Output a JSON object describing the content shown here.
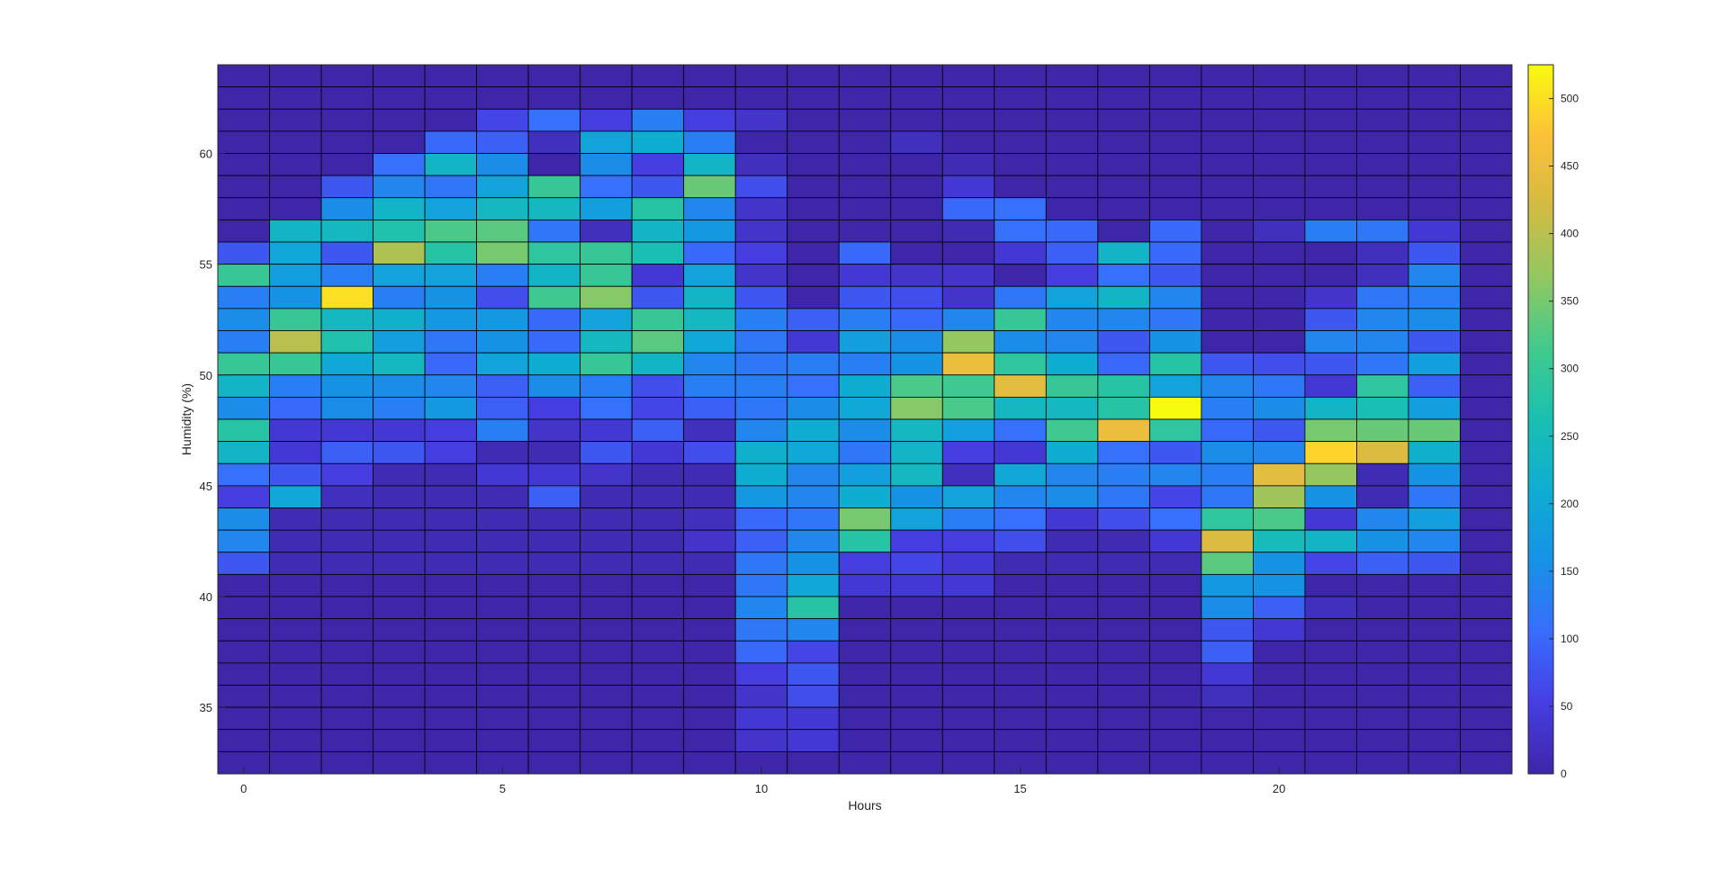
{
  "chart_data": {
    "type": "heatmap",
    "title": "",
    "xlabel": "Hours",
    "ylabel": "Humidity (%)",
    "x_bin_edges": [
      -0.5,
      0.5,
      1.5,
      2.5,
      3.5,
      4.5,
      5.5,
      6.5,
      7.5,
      8.5,
      9.5,
      10.5,
      11.5,
      12.5,
      13.5,
      14.5,
      15.5,
      16.5,
      17.5,
      18.5,
      19.5,
      20.5,
      21.5,
      22.5,
      23.5,
      24.5
    ],
    "y_bin_edges": [
      32,
      33,
      34,
      35,
      36,
      37,
      38,
      39,
      40,
      41,
      42,
      43,
      44,
      45,
      46,
      47,
      48,
      49,
      50,
      51,
      52,
      53,
      54,
      55,
      56,
      57,
      58,
      59,
      60,
      61,
      62,
      63,
      64
    ],
    "xlim": [
      -0.5,
      24.5
    ],
    "ylim": [
      32,
      64
    ],
    "xticks": [
      0,
      5,
      10,
      15,
      20
    ],
    "yticks": [
      35,
      40,
      45,
      50,
      55,
      60
    ],
    "colorbar": {
      "limits": [
        0,
        525
      ],
      "ticks": [
        0,
        50,
        100,
        150,
        200,
        250,
        300,
        350,
        400,
        450,
        500
      ]
    },
    "row_order": "top-to-bottom (64 down to 32)",
    "values": [
      [
        0,
        0,
        0,
        0,
        0,
        0,
        0,
        0,
        0,
        0,
        0,
        0,
        0,
        0,
        0,
        0,
        0,
        0,
        0,
        0,
        0,
        0,
        0,
        0,
        0
      ],
      [
        0,
        0,
        0,
        0,
        0,
        0,
        0,
        0,
        0,
        0,
        0,
        0,
        0,
        0,
        0,
        0,
        0,
        0,
        0,
        0,
        0,
        0,
        0,
        0,
        0
      ],
      [
        0,
        0,
        0,
        0,
        0,
        60,
        110,
        50,
        130,
        50,
        30,
        0,
        0,
        0,
        0,
        0,
        0,
        0,
        0,
        0,
        0,
        0,
        0,
        0,
        0
      ],
      [
        0,
        0,
        0,
        0,
        100,
        90,
        20,
        190,
        210,
        130,
        0,
        0,
        0,
        20,
        0,
        0,
        0,
        0,
        0,
        0,
        0,
        0,
        0,
        0,
        0
      ],
      [
        0,
        0,
        0,
        110,
        230,
        150,
        0,
        150,
        50,
        230,
        20,
        0,
        0,
        0,
        10,
        0,
        0,
        0,
        0,
        0,
        0,
        0,
        0,
        0,
        0
      ],
      [
        0,
        0,
        80,
        140,
        120,
        190,
        300,
        110,
        80,
        340,
        70,
        0,
        0,
        0,
        40,
        0,
        0,
        0,
        0,
        0,
        0,
        0,
        0,
        0,
        0
      ],
      [
        0,
        0,
        150,
        230,
        190,
        240,
        240,
        180,
        280,
        140,
        30,
        0,
        0,
        0,
        100,
        110,
        0,
        0,
        0,
        0,
        0,
        0,
        0,
        0,
        0
      ],
      [
        0,
        230,
        240,
        270,
        320,
        330,
        120,
        20,
        230,
        170,
        30,
        0,
        0,
        0,
        10,
        110,
        100,
        0,
        100,
        0,
        20,
        130,
        120,
        40,
        0
      ],
      [
        80,
        200,
        80,
        390,
        280,
        350,
        290,
        300,
        260,
        100,
        50,
        0,
        100,
        0,
        0,
        40,
        90,
        230,
        100,
        0,
        0,
        0,
        20,
        80,
        0
      ],
      [
        300,
        180,
        130,
        190,
        190,
        130,
        230,
        300,
        40,
        190,
        30,
        0,
        40,
        30,
        30,
        0,
        50,
        110,
        80,
        0,
        0,
        0,
        20,
        140,
        0
      ],
      [
        130,
        160,
        500,
        130,
        160,
        70,
        310,
        360,
        80,
        230,
        80,
        0,
        80,
        70,
        30,
        120,
        190,
        230,
        140,
        0,
        0,
        30,
        120,
        130,
        0
      ],
      [
        150,
        300,
        240,
        220,
        170,
        170,
        100,
        190,
        300,
        240,
        130,
        90,
        130,
        100,
        140,
        300,
        140,
        140,
        120,
        0,
        0,
        80,
        140,
        150,
        0
      ],
      [
        130,
        400,
        270,
        180,
        120,
        160,
        100,
        240,
        330,
        200,
        120,
        40,
        180,
        150,
        370,
        150,
        140,
        80,
        160,
        0,
        0,
        140,
        140,
        80,
        0
      ],
      [
        300,
        300,
        200,
        240,
        100,
        190,
        210,
        300,
        230,
        140,
        120,
        130,
        130,
        160,
        450,
        290,
        210,
        100,
        280,
        80,
        70,
        80,
        120,
        180,
        0
      ],
      [
        230,
        130,
        160,
        150,
        140,
        90,
        150,
        130,
        70,
        130,
        130,
        110,
        210,
        320,
        310,
        440,
        300,
        280,
        190,
        140,
        120,
        40,
        290,
        90,
        0
      ],
      [
        150,
        100,
        150,
        130,
        170,
        90,
        50,
        110,
        60,
        90,
        120,
        150,
        200,
        360,
        320,
        240,
        240,
        280,
        525,
        130,
        150,
        230,
        260,
        180,
        0
      ],
      [
        280,
        40,
        40,
        40,
        50,
        130,
        30,
        40,
        90,
        20,
        140,
        210,
        150,
        240,
        180,
        110,
        310,
        450,
        290,
        100,
        80,
        350,
        340,
        340,
        0
      ],
      [
        230,
        40,
        90,
        80,
        50,
        10,
        10,
        80,
        40,
        70,
        220,
        200,
        120,
        230,
        50,
        40,
        210,
        110,
        80,
        150,
        140,
        490,
        430,
        220,
        0
      ],
      [
        110,
        80,
        50,
        10,
        10,
        40,
        40,
        30,
        10,
        10,
        210,
        140,
        180,
        240,
        20,
        200,
        140,
        130,
        140,
        130,
        440,
        370,
        10,
        160,
        0
      ],
      [
        50,
        200,
        20,
        10,
        10,
        10,
        90,
        10,
        10,
        10,
        170,
        140,
        210,
        160,
        190,
        140,
        150,
        120,
        60,
        120,
        380,
        160,
        10,
        120,
        0
      ],
      [
        150,
        10,
        10,
        10,
        10,
        10,
        10,
        10,
        10,
        20,
        100,
        120,
        350,
        190,
        130,
        110,
        40,
        70,
        110,
        290,
        320,
        40,
        140,
        180,
        0
      ],
      [
        140,
        10,
        10,
        10,
        10,
        10,
        10,
        10,
        10,
        30,
        90,
        140,
        280,
        50,
        50,
        70,
        10,
        10,
        40,
        430,
        250,
        230,
        160,
        140,
        0
      ],
      [
        80,
        10,
        10,
        10,
        10,
        10,
        10,
        10,
        10,
        10,
        120,
        160,
        50,
        60,
        40,
        10,
        10,
        10,
        10,
        330,
        160,
        60,
        90,
        80,
        0
      ],
      [
        0,
        0,
        0,
        0,
        0,
        0,
        0,
        0,
        0,
        0,
        120,
        200,
        40,
        40,
        40,
        0,
        0,
        0,
        0,
        170,
        160,
        0,
        0,
        0,
        0
      ],
      [
        0,
        0,
        0,
        0,
        0,
        0,
        0,
        0,
        0,
        0,
        140,
        280,
        0,
        0,
        0,
        0,
        0,
        0,
        0,
        150,
        90,
        20,
        0,
        0,
        0
      ],
      [
        0,
        0,
        0,
        0,
        0,
        0,
        0,
        0,
        0,
        0,
        120,
        140,
        0,
        0,
        0,
        0,
        0,
        0,
        0,
        80,
        40,
        0,
        0,
        0,
        0
      ],
      [
        0,
        0,
        0,
        0,
        0,
        0,
        0,
        0,
        0,
        0,
        100,
        60,
        0,
        0,
        0,
        0,
        0,
        0,
        0,
        90,
        0,
        0,
        0,
        0,
        0
      ],
      [
        0,
        0,
        0,
        0,
        0,
        0,
        0,
        0,
        0,
        0,
        50,
        80,
        0,
        0,
        0,
        0,
        0,
        0,
        0,
        40,
        0,
        0,
        0,
        0,
        0
      ],
      [
        0,
        0,
        0,
        0,
        0,
        0,
        0,
        0,
        0,
        0,
        30,
        70,
        0,
        0,
        0,
        0,
        0,
        0,
        0,
        20,
        0,
        0,
        0,
        0,
        0
      ],
      [
        0,
        0,
        0,
        0,
        0,
        0,
        0,
        0,
        0,
        0,
        40,
        40,
        0,
        0,
        0,
        0,
        0,
        0,
        0,
        0,
        0,
        0,
        0,
        0,
        0
      ],
      [
        0,
        0,
        0,
        0,
        0,
        0,
        0,
        0,
        0,
        0,
        30,
        40,
        0,
        0,
        0,
        0,
        0,
        0,
        0,
        0,
        0,
        0,
        0,
        0,
        0
      ],
      [
        0,
        0,
        0,
        0,
        0,
        0,
        0,
        0,
        0,
        0,
        0,
        0,
        0,
        0,
        0,
        0,
        0,
        0,
        0,
        0,
        0,
        0,
        0,
        0,
        0
      ]
    ]
  }
}
